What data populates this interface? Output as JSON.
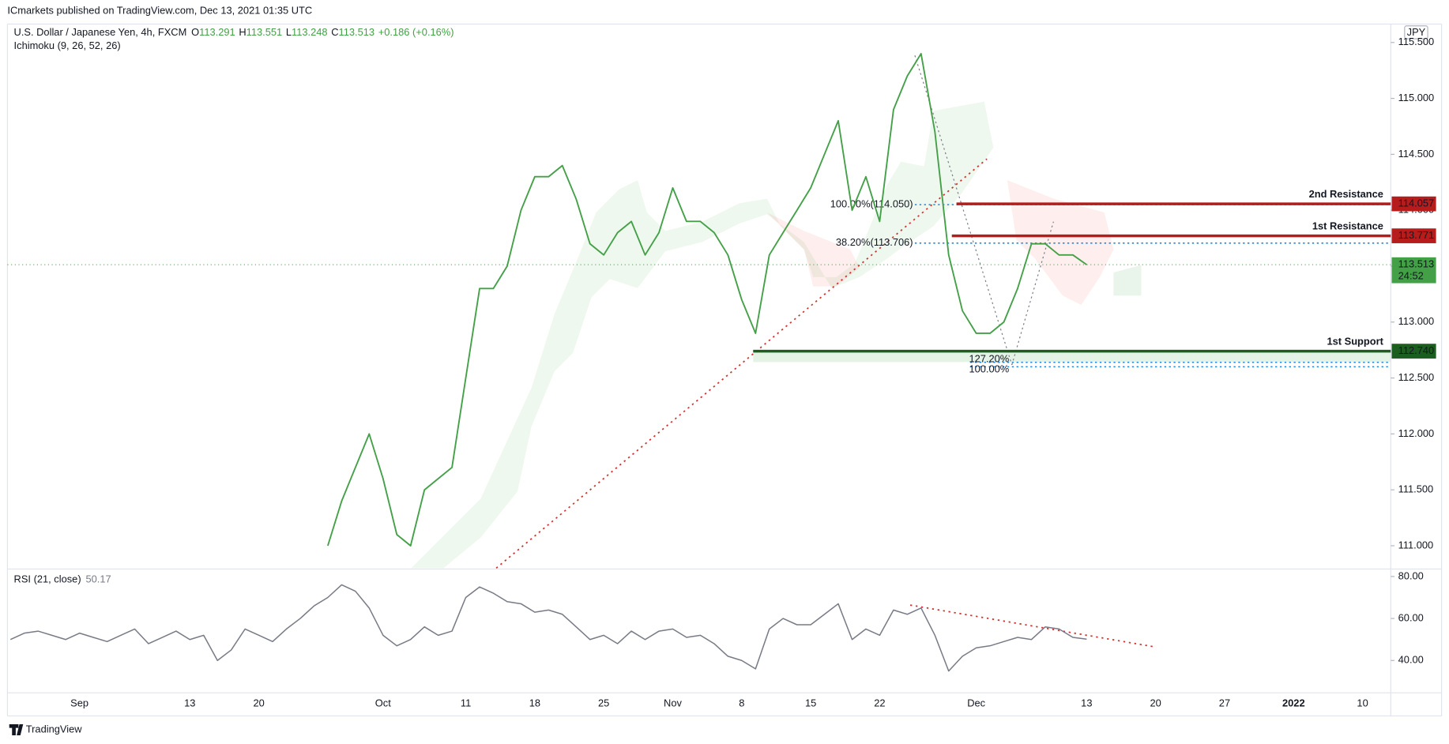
{
  "publisher": "ICmarkets published on TradingView.com, Dec 13, 2021 01:35 UTC",
  "footer": "TradingView",
  "chart_data": [
    {
      "type": "line",
      "title": "U.S. Dollar / Japanese Yen, 4h, FXCM",
      "ohlc": [
        {
          "label": "O",
          "value": 113.291
        },
        {
          "label": "H",
          "value": 113.551
        },
        {
          "label": "L",
          "value": 113.248
        },
        {
          "label": "C",
          "value": 113.513
        }
      ],
      "change": "+0.186 (+0.16%)",
      "indicator": "Ichimoku (9, 26, 52, 26)",
      "currency": "JPY",
      "color": "#43a047",
      "values": [
        null,
        null,
        null,
        null,
        null,
        null,
        null,
        null,
        null,
        null,
        null,
        null,
        null,
        null,
        null,
        null,
        null,
        null,
        null,
        null,
        null,
        null,
        null,
        111.0,
        111.4,
        111.7,
        112.0,
        111.6,
        111.1,
        111.0,
        111.5,
        111.6,
        111.7,
        112.5,
        113.3,
        113.3,
        113.5,
        114.0,
        114.3,
        114.3,
        114.4,
        114.1,
        113.7,
        113.6,
        113.8,
        113.9,
        113.6,
        113.8,
        114.2,
        113.9,
        113.9,
        113.8,
        113.6,
        113.2,
        112.9,
        113.6,
        113.8,
        114.0,
        114.2,
        114.5,
        114.8,
        114.0,
        114.3,
        113.9,
        114.9,
        115.2,
        115.4,
        114.7,
        113.6,
        113.1,
        112.9,
        112.9,
        113.0,
        113.3,
        113.7,
        113.7,
        113.6,
        113.6,
        113.513,
        null,
        null,
        null,
        null,
        null,
        null,
        null,
        null,
        null,
        null,
        null,
        null,
        null,
        null,
        null,
        null,
        null,
        null,
        null,
        null,
        null,
        null
      ],
      "ylim": [
        110.8,
        115.665
      ],
      "yticks": [
        {
          "value": 111,
          "label": "111.000"
        },
        {
          "value": 111.5,
          "label": "111.500"
        },
        {
          "value": 112,
          "label": "112.000"
        },
        {
          "value": 112.5,
          "label": "112.500"
        },
        {
          "value": 113,
          "label": "113.000"
        },
        {
          "value": 113.5,
          "label": "113.500"
        },
        {
          "value": 114,
          "label": "114.000"
        },
        {
          "value": 114.5,
          "label": "114.500"
        },
        {
          "value": 115,
          "label": "115.000"
        },
        {
          "value": 115.5,
          "label": "115.500"
        }
      ],
      "last_price_time": "24:52",
      "levels": [
        {
          "name": "2nd Resistance",
          "value": 114.057,
          "color": "#b71c1c"
        },
        {
          "name": "1st Resistance",
          "value": 113.771,
          "color": "#b71c1c"
        },
        {
          "name": "1st Support",
          "value": 112.74,
          "value_label": "112.740",
          "color": "#1b5e20"
        }
      ],
      "fib_levels": [
        {
          "label": "100.00%(114.050)",
          "value": 114.05
        },
        {
          "label": "38.20%(113.706)",
          "value": 113.706
        },
        {
          "label": "127.20%",
          "value": 112.64
        },
        {
          "label": "100.00%",
          "value": 112.6
        }
      ],
      "fib_color": "#1e88e5"
    },
    {
      "type": "line",
      "title": "RSI (21, close)",
      "color": "#787b86",
      "categories": [
        null,
        null,
        null,
        null,
        null,
        "Sep",
        null,
        null,
        null,
        null,
        null,
        null,
        null,
        "13",
        null,
        null,
        null,
        null,
        "20",
        null,
        null,
        null,
        null,
        null,
        null,
        null,
        null,
        "Oct",
        null,
        null,
        null,
        null,
        null,
        "11",
        null,
        null,
        null,
        null,
        "18",
        null,
        null,
        null,
        null,
        "25",
        null,
        null,
        null,
        null,
        "Nov",
        null,
        null,
        null,
        null,
        "8",
        null,
        null,
        null,
        null,
        "15",
        null,
        null,
        null,
        null,
        "22",
        null,
        null,
        null,
        null,
        null,
        null,
        "Dec",
        null,
        null,
        null,
        null,
        null,
        null,
        null,
        "13",
        null,
        null,
        null,
        null,
        "20",
        null,
        null,
        null,
        null,
        "27",
        null,
        null,
        null,
        null,
        "2022",
        null,
        null,
        null,
        null,
        "10",
        null,
        null
      ],
      "values": [
        50,
        53,
        54,
        52,
        50,
        53,
        51,
        49,
        52,
        55,
        48,
        51,
        54,
        50,
        52,
        40,
        45,
        55,
        52,
        49,
        55,
        60,
        66,
        70,
        76,
        73,
        65,
        52,
        47,
        50,
        56,
        52,
        54,
        70,
        75,
        72,
        68,
        67,
        63,
        64,
        62,
        56,
        50,
        52,
        48,
        54,
        50,
        54,
        55,
        51,
        52,
        48,
        42,
        40,
        36,
        55,
        60,
        57,
        57,
        62,
        67,
        50,
        55,
        52,
        64,
        62,
        65,
        52,
        35,
        42,
        46,
        47,
        49,
        51,
        50,
        56,
        55,
        51,
        50.17,
        null,
        null,
        null,
        null,
        null,
        null,
        null,
        null,
        null,
        null,
        null,
        null,
        null,
        null,
        null,
        null,
        null,
        null,
        null,
        null,
        null,
        null
      ],
      "ylim": [
        24.6,
        83.1
      ],
      "yticks": [
        {
          "value": 40,
          "label": "40.00"
        },
        {
          "value": 60,
          "label": "60.00"
        },
        {
          "value": 80,
          "label": "80.00"
        }
      ]
    }
  ]
}
